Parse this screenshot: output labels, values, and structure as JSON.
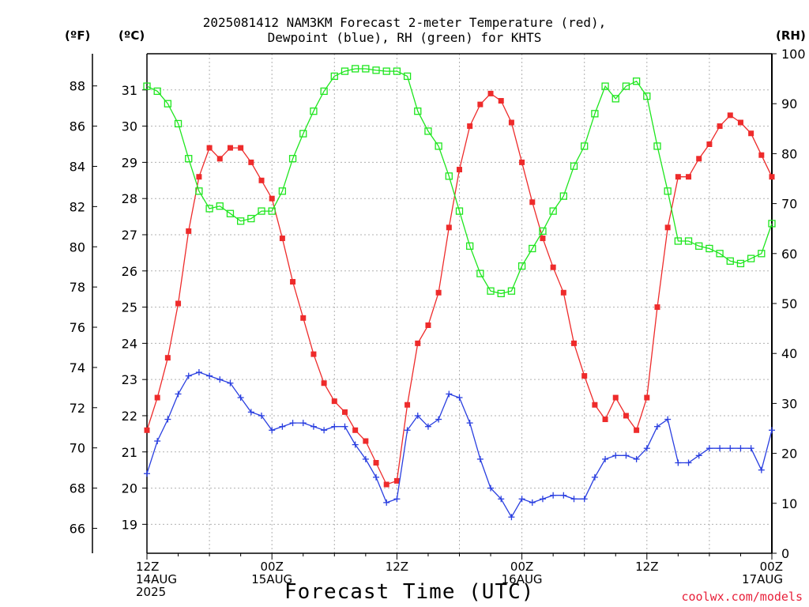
{
  "chart_data": {
    "type": "line",
    "title_line1": "2025081412 NAM3KM Forecast 2-meter Temperature (red),",
    "title_line2": "Dewpoint (blue), RH (green) for KHTS",
    "unit_f": "(ºF)",
    "unit_c": "(ºC)",
    "unit_rh": "(RH)",
    "xlabel": "Forecast Time (UTC)",
    "credit": "coolwx.com/models",
    "x_range_hours": [
      0,
      60
    ],
    "x_ticks": [
      {
        "hour": 0,
        "line1": "12Z",
        "line2": "14AUG",
        "line3": "2025"
      },
      {
        "hour": 12,
        "line1": "00Z",
        "line2": "15AUG",
        "line3": ""
      },
      {
        "hour": 24,
        "line1": "12Z",
        "line2": "",
        "line3": ""
      },
      {
        "hour": 36,
        "line1": "00Z",
        "line2": "16AUG",
        "line3": ""
      },
      {
        "hour": 48,
        "line1": "12Z",
        "line2": "",
        "line3": ""
      },
      {
        "hour": 60,
        "line1": "00Z",
        "line2": "17AUG",
        "line3": ""
      }
    ],
    "y_left_c": {
      "range": [
        18.2,
        32.0
      ],
      "ticks": [
        19,
        20,
        21,
        22,
        23,
        24,
        25,
        26,
        27,
        28,
        29,
        30,
        31
      ]
    },
    "y_left_f": {
      "ticks": [
        66,
        68,
        70,
        72,
        74,
        76,
        78,
        80,
        82,
        84,
        86,
        88
      ]
    },
    "y_right_rh": {
      "range": [
        0,
        100
      ],
      "ticks": [
        0,
        10,
        20,
        30,
        40,
        50,
        60,
        70,
        80,
        90,
        100
      ]
    },
    "grid": true,
    "series": [
      {
        "name": "Temperature",
        "color": "#ee2b2b",
        "unit": "C",
        "marker": "filled-square",
        "values": [
          21.6,
          22.5,
          23.6,
          25.1,
          27.1,
          28.6,
          29.4,
          29.1,
          29.4,
          29.4,
          29.0,
          28.5,
          28.0,
          26.9,
          25.7,
          24.7,
          23.7,
          22.9,
          22.4,
          22.1,
          21.6,
          21.3,
          20.7,
          20.1,
          20.2,
          22.3,
          24.0,
          24.5,
          25.4,
          27.2,
          28.8,
          30.0,
          30.6,
          30.9,
          30.7,
          30.1,
          29.0,
          27.9,
          26.9,
          26.1,
          25.4,
          24.0,
          23.1,
          22.3,
          21.9,
          22.5,
          22.0,
          21.6,
          22.5,
          25.0,
          27.2,
          28.6,
          28.6,
          29.1,
          29.5,
          30.0,
          30.3,
          30.1,
          29.8,
          29.2,
          28.6
        ]
      },
      {
        "name": "Dewpoint",
        "color": "#2a3fe0",
        "unit": "C",
        "marker": "plus",
        "values": [
          20.4,
          21.3,
          21.9,
          22.6,
          23.1,
          23.2,
          23.1,
          23.0,
          22.9,
          22.5,
          22.1,
          22.0,
          21.6,
          21.7,
          21.8,
          21.8,
          21.7,
          21.6,
          21.7,
          21.7,
          21.2,
          20.8,
          20.3,
          19.6,
          19.7,
          21.6,
          22.0,
          21.7,
          21.9,
          22.6,
          22.5,
          21.8,
          20.8,
          20.0,
          19.7,
          19.2,
          19.7,
          19.6,
          19.7,
          19.8,
          19.8,
          19.7,
          19.7,
          20.3,
          20.8,
          20.9,
          20.9,
          20.8,
          21.1,
          21.7,
          21.9,
          20.7,
          20.7,
          20.9,
          21.1,
          21.1,
          21.1,
          21.1,
          21.1,
          20.5,
          21.6
        ]
      },
      {
        "name": "RH",
        "color": "#1ee61e",
        "unit": "%",
        "marker": "open-square",
        "values": [
          93.5,
          92.5,
          90,
          86,
          79,
          72.5,
          69,
          69.5,
          68,
          66.5,
          67,
          68.5,
          68.5,
          72.5,
          79,
          84,
          88.5,
          92.5,
          95.5,
          96.5,
          97,
          97,
          96.7,
          96.5,
          96.5,
          95.5,
          88.5,
          84.5,
          81.5,
          75.5,
          68.5,
          61.5,
          56,
          52.5,
          52,
          52.5,
          57.5,
          61,
          64.5,
          68.5,
          71.5,
          77.5,
          81.5,
          88,
          93.5,
          91,
          93.5,
          94.5,
          91.5,
          81.5,
          72.5,
          62.5,
          62.5,
          61.5,
          61,
          60,
          58.5,
          58,
          59,
          60,
          66
        ]
      }
    ]
  }
}
